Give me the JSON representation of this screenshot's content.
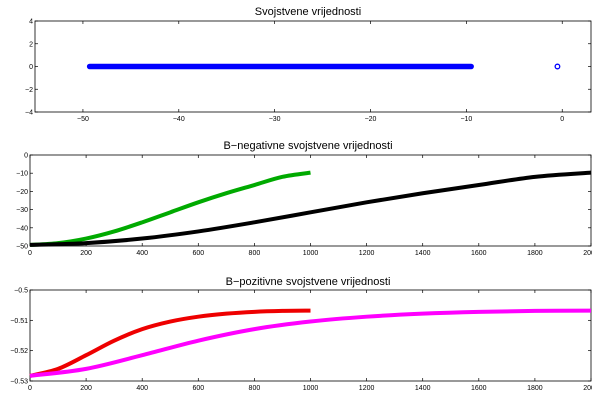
{
  "figure": {
    "background": "#ffffff"
  },
  "chart_data": [
    {
      "type": "scatter",
      "title": "Svojstvene vrijednosti",
      "xlabel": "",
      "ylabel": "",
      "xlim": [
        -55,
        3
      ],
      "ylim": [
        -4,
        4
      ],
      "xticks": [
        -50,
        -40,
        -30,
        -20,
        -10,
        0
      ],
      "xtick_labels": [
        "−50",
        "−40",
        "−30",
        "−20",
        "−10",
        "0"
      ],
      "yticks": [
        -4,
        -2,
        0,
        2,
        4
      ],
      "ytick_labels": [
        "−4",
        "−2",
        "0",
        "2",
        "4"
      ],
      "grid": false,
      "series": [
        {
          "color": "#0000ff",
          "marker": "circle",
          "points_dense_range": {
            "x_from": -49.3,
            "x_to": -9.5,
            "y": 0
          },
          "points": [
            {
              "x": -0.5,
              "y": 0
            }
          ]
        }
      ]
    },
    {
      "type": "line",
      "title": "B−negativne svojstvene vrijednosti",
      "xlabel": "",
      "ylabel": "",
      "xlim": [
        0,
        2000
      ],
      "ylim": [
        -50,
        0
      ],
      "xticks": [
        0,
        200,
        400,
        600,
        800,
        1000,
        1200,
        1400,
        1600,
        1800,
        2000
      ],
      "xtick_labels": [
        "0",
        "200",
        "400",
        "600",
        "800",
        "1000",
        "1200",
        "1400",
        "1600",
        "1800",
        "2000"
      ],
      "yticks": [
        -50,
        -40,
        -30,
        -20,
        -10,
        0
      ],
      "ytick_labels": [
        "−50",
        "−40",
        "−30",
        "−20",
        "−10",
        "0"
      ],
      "grid": false,
      "series": [
        {
          "color": "#00aa00",
          "line_width": 4,
          "x": [
            0,
            100,
            200,
            300,
            400,
            500,
            600,
            700,
            800,
            900,
            1000
          ],
          "y": [
            -49.4,
            -48.4,
            -45.9,
            -42.0,
            -37.0,
            -31.5,
            -26.0,
            -21.0,
            -16.5,
            -12.0,
            -9.7
          ]
        },
        {
          "color": "#000000",
          "line_width": 4,
          "x": [
            0,
            200,
            400,
            600,
            800,
            1000,
            1200,
            1400,
            1600,
            1800,
            2000
          ],
          "y": [
            -49.4,
            -48.4,
            -45.9,
            -42.0,
            -37.0,
            -31.5,
            -26.0,
            -21.0,
            -16.5,
            -12.0,
            -9.7
          ]
        }
      ]
    },
    {
      "type": "line",
      "title": "B−pozitivne svojstvene vrijednosti",
      "xlabel": "",
      "ylabel": "",
      "xlim": [
        0,
        2000
      ],
      "ylim": [
        -0.53,
        -0.5
      ],
      "xticks": [
        0,
        200,
        400,
        600,
        800,
        1000,
        1200,
        1400,
        1600,
        1800,
        2000
      ],
      "xtick_labels": [
        "0",
        "200",
        "400",
        "600",
        "800",
        "1000",
        "1200",
        "1400",
        "1600",
        "1800",
        "2000"
      ],
      "yticks": [
        -0.53,
        -0.52,
        -0.51,
        -0.5
      ],
      "ytick_labels": [
        "−0.53",
        "−0.52",
        "−0.51",
        "−0.5"
      ],
      "grid": false,
      "series": [
        {
          "color": "#ee0000",
          "line_width": 4,
          "x": [
            0,
            100,
            200,
            300,
            400,
            500,
            600,
            700,
            800,
            900,
            1000
          ],
          "y": [
            -0.5283,
            -0.526,
            -0.5215,
            -0.5167,
            -0.5129,
            -0.5104,
            -0.5088,
            -0.5078,
            -0.5072,
            -0.5069,
            -0.5068
          ]
        },
        {
          "color": "#ff00ff",
          "line_width": 4,
          "x": [
            0,
            200,
            400,
            600,
            800,
            1000,
            1200,
            1400,
            1600,
            1800,
            2000
          ],
          "y": [
            -0.5283,
            -0.526,
            -0.5215,
            -0.5167,
            -0.5129,
            -0.5104,
            -0.5088,
            -0.5078,
            -0.5072,
            -0.5069,
            -0.5068
          ]
        }
      ]
    }
  ]
}
